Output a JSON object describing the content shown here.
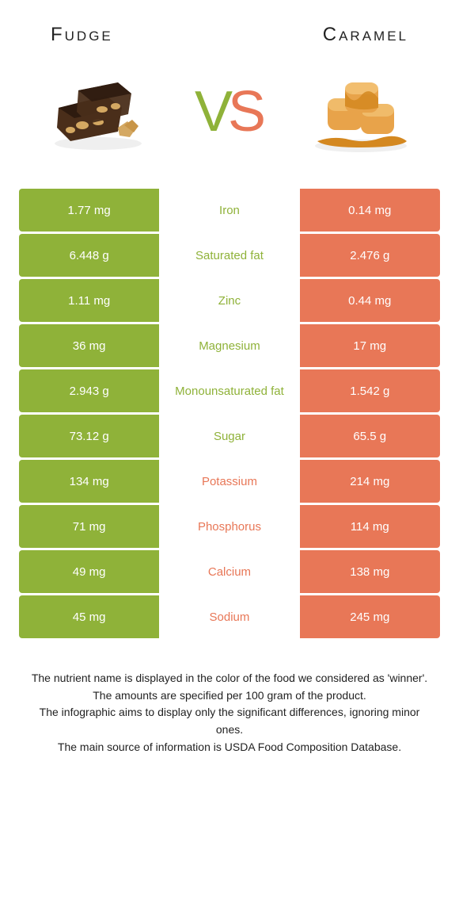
{
  "foodA": {
    "name": "Fudge",
    "color": "#8fb239"
  },
  "foodB": {
    "name": "Caramel",
    "color": "#e87757"
  },
  "vs": {
    "v_color": "#8fb239",
    "s_color": "#e87757"
  },
  "imgA": {
    "main": "#4a2e1a",
    "accent": "#d4a862",
    "shadow": "#2e1b0f"
  },
  "imgB": {
    "main": "#e8a34a",
    "sauce": "#d48820",
    "highlight": "#f4c478"
  },
  "rows": [
    {
      "nutrient": "Iron",
      "a": "1.77 mg",
      "b": "0.14 mg",
      "winner": "a"
    },
    {
      "nutrient": "Saturated fat",
      "a": "6.448 g",
      "b": "2.476 g",
      "winner": "a"
    },
    {
      "nutrient": "Zinc",
      "a": "1.11 mg",
      "b": "0.44 mg",
      "winner": "a"
    },
    {
      "nutrient": "Magnesium",
      "a": "36 mg",
      "b": "17 mg",
      "winner": "a"
    },
    {
      "nutrient": "Monounsaturated fat",
      "a": "2.943 g",
      "b": "1.542 g",
      "winner": "a"
    },
    {
      "nutrient": "Sugar",
      "a": "73.12 g",
      "b": "65.5 g",
      "winner": "a"
    },
    {
      "nutrient": "Potassium",
      "a": "134 mg",
      "b": "214 mg",
      "winner": "b"
    },
    {
      "nutrient": "Phosphorus",
      "a": "71 mg",
      "b": "114 mg",
      "winner": "b"
    },
    {
      "nutrient": "Calcium",
      "a": "49 mg",
      "b": "138 mg",
      "winner": "b"
    },
    {
      "nutrient": "Sodium",
      "a": "45 mg",
      "b": "245 mg",
      "winner": "b"
    }
  ],
  "footer": {
    "l1": "The nutrient name is displayed in the color of the food we considered as 'winner'.",
    "l2": "The amounts are specified per 100 gram of the product.",
    "l3": "The infographic aims to display only the significant differences, ignoring minor ones.",
    "l4": "The main source of information is USDA Food Composition Database."
  }
}
